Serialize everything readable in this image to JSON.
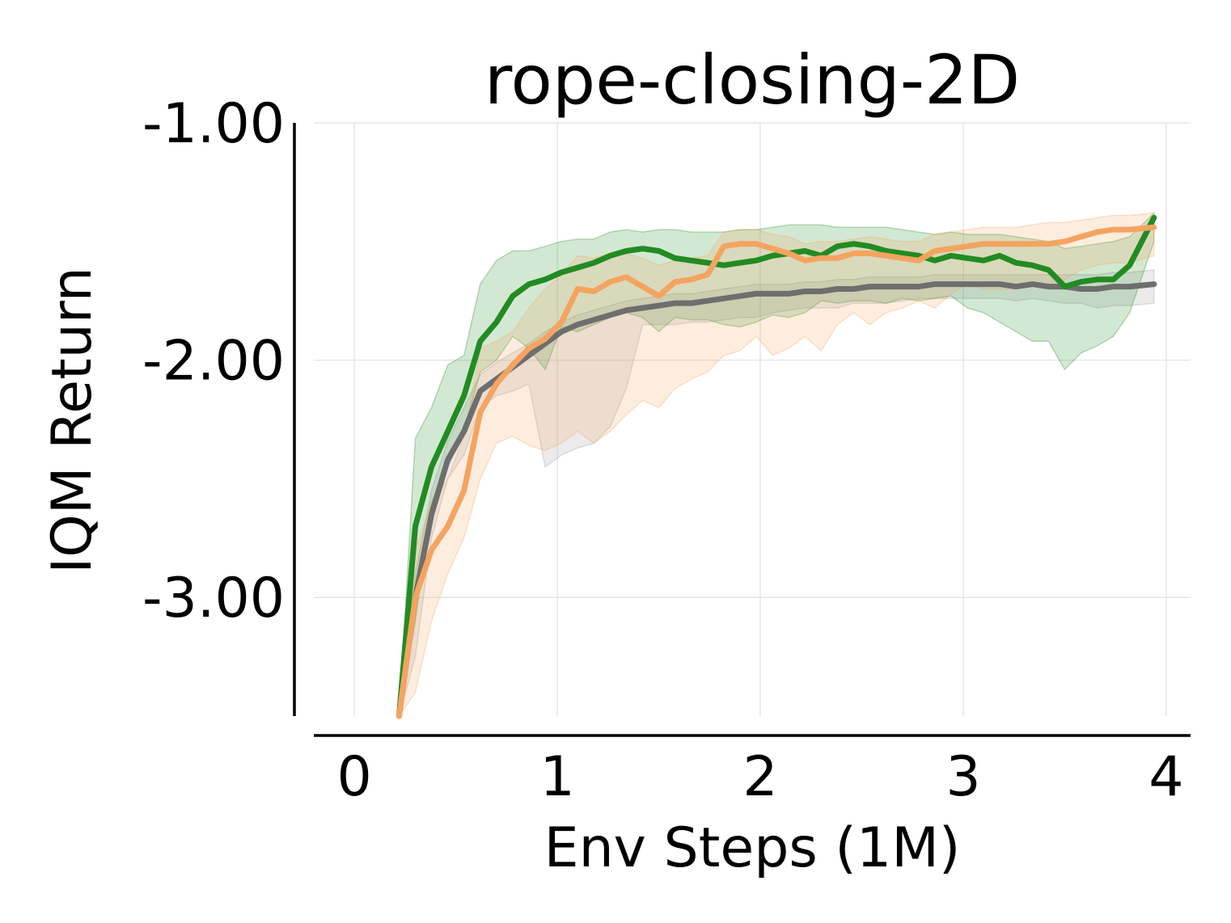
{
  "chart_data": {
    "type": "line",
    "title": "rope-closing-2D",
    "xlabel": "Env Steps (1M)",
    "ylabel": "IQM Return",
    "xlim": [
      -0.2,
      4.12
    ],
    "ylim": [
      -3.5,
      -1.0
    ],
    "xticks": [
      0,
      1,
      2,
      3,
      4
    ],
    "xtick_labels": [
      "0",
      "1",
      "2",
      "3",
      "4"
    ],
    "yticks": [
      -1.0,
      -2.0,
      -3.0
    ],
    "ytick_labels": [
      "-1.00",
      "-2.00",
      "-3.00"
    ],
    "grid": true,
    "legend": "none",
    "series": [
      {
        "color": "#9a9a9a",
        "line_color": "#6e6e6e",
        "x": [
          0.22,
          0.3,
          0.38,
          0.46,
          0.54,
          0.62,
          0.7,
          0.78,
          0.86,
          0.94,
          1.02,
          1.1,
          1.18,
          1.26,
          1.34,
          1.42,
          1.5,
          1.58,
          1.66,
          1.74,
          1.82,
          1.9,
          1.98,
          2.06,
          2.14,
          2.22,
          2.3,
          2.38,
          2.46,
          2.54,
          2.62,
          2.7,
          2.78,
          2.86,
          2.94,
          3.02,
          3.1,
          3.18,
          3.26,
          3.34,
          3.42,
          3.5,
          3.58,
          3.66,
          3.74,
          3.82,
          3.94
        ],
        "y": [
          -3.62,
          -3.0,
          -2.65,
          -2.42,
          -2.3,
          -2.13,
          -2.08,
          -2.03,
          -1.98,
          -1.93,
          -1.88,
          -1.85,
          -1.83,
          -1.81,
          -1.79,
          -1.78,
          -1.77,
          -1.76,
          -1.76,
          -1.75,
          -1.74,
          -1.73,
          -1.72,
          -1.72,
          -1.72,
          -1.71,
          -1.71,
          -1.7,
          -1.7,
          -1.69,
          -1.69,
          -1.69,
          -1.69,
          -1.68,
          -1.68,
          -1.68,
          -1.68,
          -1.68,
          -1.69,
          -1.68,
          -1.69,
          -1.69,
          -1.7,
          -1.7,
          -1.69,
          -1.69,
          -1.68
        ],
        "lower": [
          -3.62,
          -3.25,
          -2.75,
          -2.5,
          -2.4,
          -2.2,
          -2.15,
          -2.13,
          -2.1,
          -2.45,
          -2.4,
          -2.37,
          -2.35,
          -2.28,
          -2.12,
          -1.85,
          -1.85,
          -1.85,
          -1.84,
          -1.84,
          -1.83,
          -1.82,
          -1.82,
          -1.8,
          -1.79,
          -1.78,
          -1.78,
          -1.78,
          -1.76,
          -1.76,
          -1.76,
          -1.75,
          -1.74,
          -1.74,
          -1.74,
          -1.74,
          -1.74,
          -1.74,
          -1.75,
          -1.74,
          -1.75,
          -1.76,
          -1.76,
          -1.78,
          -1.77,
          -1.77,
          -1.76
        ],
        "upper": [
          -3.62,
          -2.9,
          -2.55,
          -2.34,
          -2.2,
          -2.06,
          -2.01,
          -1.97,
          -1.93,
          -1.88,
          -1.84,
          -1.81,
          -1.79,
          -1.77,
          -1.75,
          -1.74,
          -1.73,
          -1.72,
          -1.72,
          -1.71,
          -1.7,
          -1.69,
          -1.68,
          -1.68,
          -1.68,
          -1.67,
          -1.67,
          -1.66,
          -1.66,
          -1.65,
          -1.65,
          -1.65,
          -1.65,
          -1.64,
          -1.64,
          -1.64,
          -1.64,
          -1.64,
          -1.64,
          -1.64,
          -1.64,
          -1.64,
          -1.64,
          -1.64,
          -1.63,
          -1.63,
          -1.62
        ]
      },
      {
        "color": "#228b22",
        "line_color": "#228b22",
        "x": [
          0.22,
          0.3,
          0.38,
          0.46,
          0.54,
          0.62,
          0.7,
          0.78,
          0.86,
          0.94,
          1.02,
          1.1,
          1.18,
          1.26,
          1.34,
          1.42,
          1.5,
          1.58,
          1.66,
          1.74,
          1.82,
          1.9,
          1.98,
          2.06,
          2.14,
          2.22,
          2.3,
          2.38,
          2.46,
          2.54,
          2.62,
          2.7,
          2.78,
          2.86,
          2.94,
          3.02,
          3.1,
          3.18,
          3.26,
          3.34,
          3.42,
          3.5,
          3.58,
          3.66,
          3.74,
          3.82,
          3.94
        ],
        "y": [
          -3.6,
          -2.7,
          -2.45,
          -2.3,
          -2.15,
          -1.92,
          -1.84,
          -1.73,
          -1.68,
          -1.66,
          -1.63,
          -1.61,
          -1.59,
          -1.56,
          -1.54,
          -1.53,
          -1.54,
          -1.57,
          -1.58,
          -1.59,
          -1.6,
          -1.59,
          -1.58,
          -1.56,
          -1.55,
          -1.54,
          -1.56,
          -1.52,
          -1.51,
          -1.52,
          -1.54,
          -1.55,
          -1.56,
          -1.58,
          -1.56,
          -1.57,
          -1.58,
          -1.56,
          -1.59,
          -1.6,
          -1.62,
          -1.69,
          -1.67,
          -1.66,
          -1.66,
          -1.6,
          -1.4
        ],
        "lower": [
          -3.6,
          -3.1,
          -2.6,
          -2.45,
          -2.3,
          -2.05,
          -2.0,
          -1.9,
          -1.95,
          -2.04,
          -1.86,
          -1.88,
          -1.85,
          -1.82,
          -1.8,
          -1.82,
          -1.88,
          -1.82,
          -1.83,
          -1.83,
          -1.85,
          -1.86,
          -1.84,
          -1.81,
          -1.82,
          -1.8,
          -1.75,
          -1.76,
          -1.75,
          -1.75,
          -1.76,
          -1.74,
          -1.75,
          -1.74,
          -1.73,
          -1.78,
          -1.8,
          -1.84,
          -1.88,
          -1.92,
          -1.92,
          -2.04,
          -1.97,
          -1.94,
          -1.9,
          -1.8,
          -1.5
        ],
        "upper": [
          -3.6,
          -2.33,
          -2.2,
          -2.02,
          -1.98,
          -1.68,
          -1.58,
          -1.54,
          -1.54,
          -1.52,
          -1.5,
          -1.49,
          -1.49,
          -1.46,
          -1.45,
          -1.46,
          -1.45,
          -1.45,
          -1.46,
          -1.46,
          -1.46,
          -1.45,
          -1.45,
          -1.44,
          -1.43,
          -1.43,
          -1.43,
          -1.44,
          -1.44,
          -1.44,
          -1.44,
          -1.45,
          -1.46,
          -1.47,
          -1.46,
          -1.47,
          -1.47,
          -1.47,
          -1.48,
          -1.49,
          -1.5,
          -1.53,
          -1.52,
          -1.51,
          -1.5,
          -1.48,
          -1.38
        ]
      },
      {
        "color": "#f4a460",
        "line_color": "#f4a460",
        "x": [
          0.22,
          0.3,
          0.38,
          0.46,
          0.54,
          0.62,
          0.7,
          0.78,
          0.86,
          0.94,
          1.02,
          1.1,
          1.18,
          1.26,
          1.34,
          1.42,
          1.5,
          1.58,
          1.66,
          1.74,
          1.82,
          1.9,
          1.98,
          2.06,
          2.14,
          2.22,
          2.3,
          2.38,
          2.46,
          2.54,
          2.62,
          2.7,
          2.78,
          2.86,
          2.94,
          3.02,
          3.1,
          3.18,
          3.26,
          3.34,
          3.42,
          3.5,
          3.58,
          3.66,
          3.74,
          3.82,
          3.94
        ],
        "y": [
          -3.62,
          -3.0,
          -2.8,
          -2.7,
          -2.55,
          -2.22,
          -2.1,
          -2.02,
          -1.95,
          -1.91,
          -1.84,
          -1.7,
          -1.71,
          -1.67,
          -1.65,
          -1.69,
          -1.73,
          -1.67,
          -1.66,
          -1.64,
          -1.52,
          -1.51,
          -1.51,
          -1.53,
          -1.55,
          -1.58,
          -1.57,
          -1.57,
          -1.55,
          -1.55,
          -1.56,
          -1.57,
          -1.58,
          -1.54,
          -1.53,
          -1.52,
          -1.51,
          -1.51,
          -1.51,
          -1.51,
          -1.51,
          -1.5,
          -1.48,
          -1.46,
          -1.45,
          -1.45,
          -1.44
        ],
        "lower": [
          -3.62,
          -3.4,
          -3.1,
          -2.9,
          -2.75,
          -2.5,
          -2.35,
          -2.32,
          -2.36,
          -2.38,
          -2.35,
          -2.3,
          -2.35,
          -2.3,
          -2.23,
          -2.17,
          -2.2,
          -2.12,
          -2.08,
          -2.05,
          -1.98,
          -1.96,
          -1.9,
          -1.98,
          -1.95,
          -1.9,
          -1.96,
          -1.85,
          -1.8,
          -1.85,
          -1.8,
          -1.78,
          -1.75,
          -1.78,
          -1.72,
          -1.68,
          -1.7,
          -1.7,
          -1.7,
          -1.69,
          -1.68,
          -1.66,
          -1.62,
          -1.6,
          -1.59,
          -1.59,
          -1.56
        ],
        "upper": [
          -3.62,
          -2.8,
          -2.6,
          -2.5,
          -2.32,
          -1.95,
          -1.92,
          -1.88,
          -1.78,
          -1.7,
          -1.64,
          -1.56,
          -1.57,
          -1.55,
          -1.55,
          -1.57,
          -1.6,
          -1.58,
          -1.57,
          -1.56,
          -1.46,
          -1.45,
          -1.45,
          -1.47,
          -1.48,
          -1.51,
          -1.5,
          -1.5,
          -1.49,
          -1.48,
          -1.49,
          -1.5,
          -1.5,
          -1.47,
          -1.46,
          -1.45,
          -1.44,
          -1.44,
          -1.44,
          -1.43,
          -1.42,
          -1.42,
          -1.41,
          -1.4,
          -1.39,
          -1.39,
          -1.38
        ]
      }
    ]
  }
}
